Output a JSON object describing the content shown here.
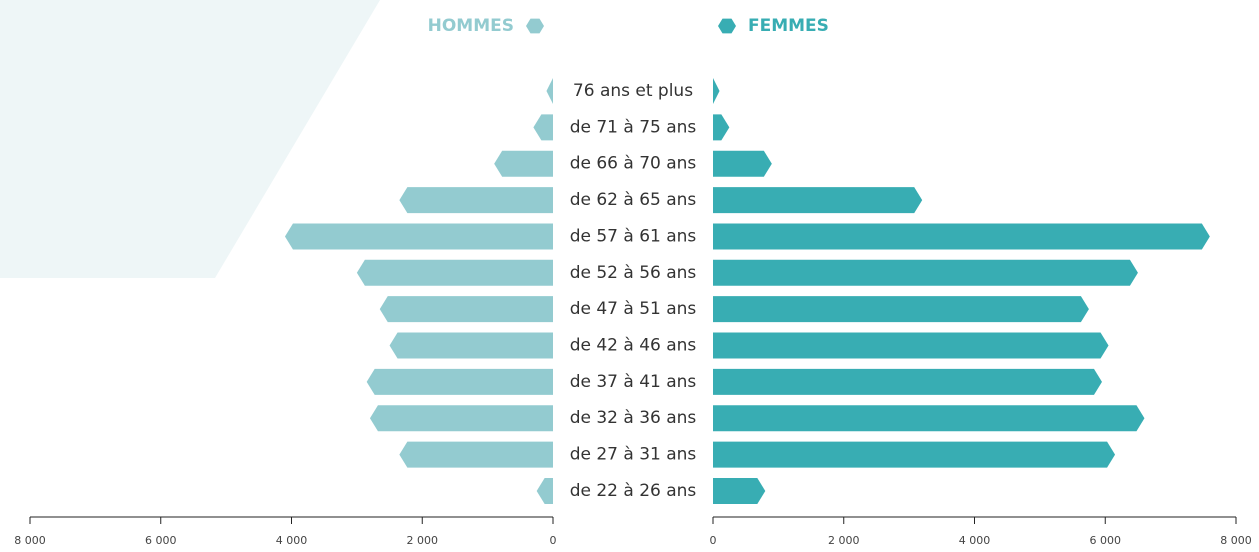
{
  "chart_data": {
    "type": "pyramid",
    "categories": [
      "76 ans et plus",
      "de 71 à 75 ans",
      "de 66 à 70 ans",
      "de 62 à 65 ans",
      "de 57 à 61 ans",
      "de 52 à 56 ans",
      "de 47 à 51 ans",
      "de 42 à 46 ans",
      "de 37 à 41 ans",
      "de 32 à 36 ans",
      "de 27 à 31 ans",
      "de 22 à 26 ans"
    ],
    "series": [
      {
        "name": "HOMMES",
        "color": "#93cbd0",
        "values": [
          100,
          300,
          900,
          2350,
          4100,
          3000,
          2650,
          2500,
          2850,
          2800,
          2350,
          250
        ]
      },
      {
        "name": "FEMMES",
        "color": "#38adb3",
        "values": [
          100,
          250,
          900,
          3200,
          7600,
          6500,
          5750,
          6050,
          5950,
          6600,
          6150,
          800
        ]
      }
    ],
    "xlim": [
      0,
      8000
    ],
    "xticks": [
      0,
      {
        "value": 2000,
        "label": "2 000"
      },
      {
        "value": 4000,
        "label": "4 000"
      },
      {
        "value": 6000,
        "label": "6 000"
      },
      {
        "value": 8000,
        "label": "8 000"
      }
    ]
  }
}
